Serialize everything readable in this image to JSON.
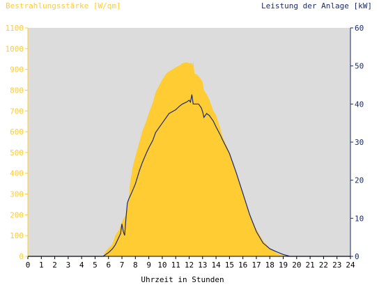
{
  "chart_data": {
    "type": "area",
    "y1label": "Bestrahlungsstärke [W/qm]",
    "y2label": "Leistung der Anlage [kW]",
    "xlabel": "Uhrzeit in Stunden",
    "xlim": [
      0,
      24
    ],
    "y1lim": [
      0,
      1100
    ],
    "y2lim": [
      0,
      60
    ],
    "x_ticks": [
      "0",
      "1",
      "2",
      "3",
      "4",
      "5",
      "6",
      "7",
      "8",
      "9",
      "10",
      "11",
      "12",
      "13",
      "14",
      "15",
      "16",
      "17",
      "18",
      "19",
      "20",
      "21",
      "22",
      "23",
      "24"
    ],
    "y1_ticks": [
      "0",
      "100",
      "200",
      "300",
      "400",
      "500",
      "600",
      "700",
      "800",
      "900",
      "1000",
      "1100"
    ],
    "y2_ticks": [
      "0",
      "10",
      "20",
      "30",
      "40",
      "50",
      "60"
    ],
    "grid": false,
    "colors": {
      "irradiance": "#ffcc33",
      "power": "#1a2a6c",
      "plot_bg": "#dcdcdc",
      "y1_axis": "#ffcc33",
      "y2_axis": "#1a2a6c"
    },
    "series": [
      {
        "x": [
          0,
          5.6,
          5.8,
          6.0,
          6.3,
          6.5,
          6.6,
          6.8,
          6.9,
          7.0,
          7.1,
          7.3,
          7.5,
          7.6,
          7.8,
          8.0,
          8.3,
          8.5,
          8.8,
          9.0,
          9.3,
          9.5,
          10.0,
          10.3,
          10.5,
          11.0,
          11.3,
          11.5,
          11.8,
          12.0,
          12.2,
          12.25,
          12.3,
          12.4,
          12.6,
          12.8,
          13.0,
          13.1,
          13.3,
          13.5,
          13.8,
          14.0,
          14.3,
          14.5,
          15.0,
          15.5,
          16.0,
          16.5,
          17.0,
          17.5,
          18.0,
          18.5,
          19.0,
          19.5,
          19.8,
          20.0,
          21.0,
          24.0
        ],
        "values": [
          0,
          0,
          25,
          40,
          60,
          100,
          110,
          130,
          150,
          165,
          180,
          200,
          275,
          350,
          430,
          480,
          550,
          600,
          650,
          690,
          740,
          790,
          850,
          880,
          890,
          910,
          920,
          930,
          935,
          930,
          930,
          920,
          940,
          880,
          875,
          860,
          840,
          800,
          780,
          755,
          700,
          680,
          620,
          575,
          500,
          400,
          300,
          200,
          130,
          75,
          40,
          15,
          5,
          0,
          0,
          0,
          0,
          0
        ]
      },
      {
        "x": [
          0,
          5.6,
          5.8,
          6.0,
          6.3,
          6.5,
          6.7,
          6.9,
          7.0,
          7.1,
          7.2,
          7.3,
          7.4,
          7.5,
          7.7,
          8.0,
          8.3,
          8.5,
          8.8,
          9.0,
          9.3,
          9.5,
          10.0,
          10.3,
          10.5,
          11.0,
          11.3,
          11.5,
          11.8,
          12.0,
          12.1,
          12.2,
          12.3,
          12.5,
          12.7,
          12.9,
          13.0,
          13.1,
          13.3,
          13.5,
          13.8,
          14.0,
          14.3,
          14.5,
          15.0,
          15.5,
          16.0,
          16.5,
          17.0,
          17.5,
          18.0,
          18.5,
          19.0,
          19.5,
          19.8,
          20.0,
          21.0,
          24.0
        ],
        "values": [
          0,
          0,
          0.5,
          1.0,
          2.0,
          3.0,
          4.5,
          6.0,
          8.5,
          6.5,
          5.5,
          10.0,
          14.0,
          15.0,
          16.5,
          19.0,
          22.5,
          24.5,
          27.0,
          28.5,
          30.5,
          32.5,
          35.0,
          36.5,
          37.5,
          38.5,
          39.5,
          40.0,
          40.5,
          41.0,
          40.5,
          42.5,
          40.0,
          40.0,
          40.0,
          39.0,
          38.0,
          36.5,
          37.5,
          37.0,
          35.5,
          34.0,
          32.0,
          30.5,
          27.0,
          22.0,
          16.5,
          11.0,
          6.5,
          3.5,
          2.0,
          1.2,
          0.5,
          0,
          0,
          0,
          0,
          0
        ]
      }
    ]
  }
}
